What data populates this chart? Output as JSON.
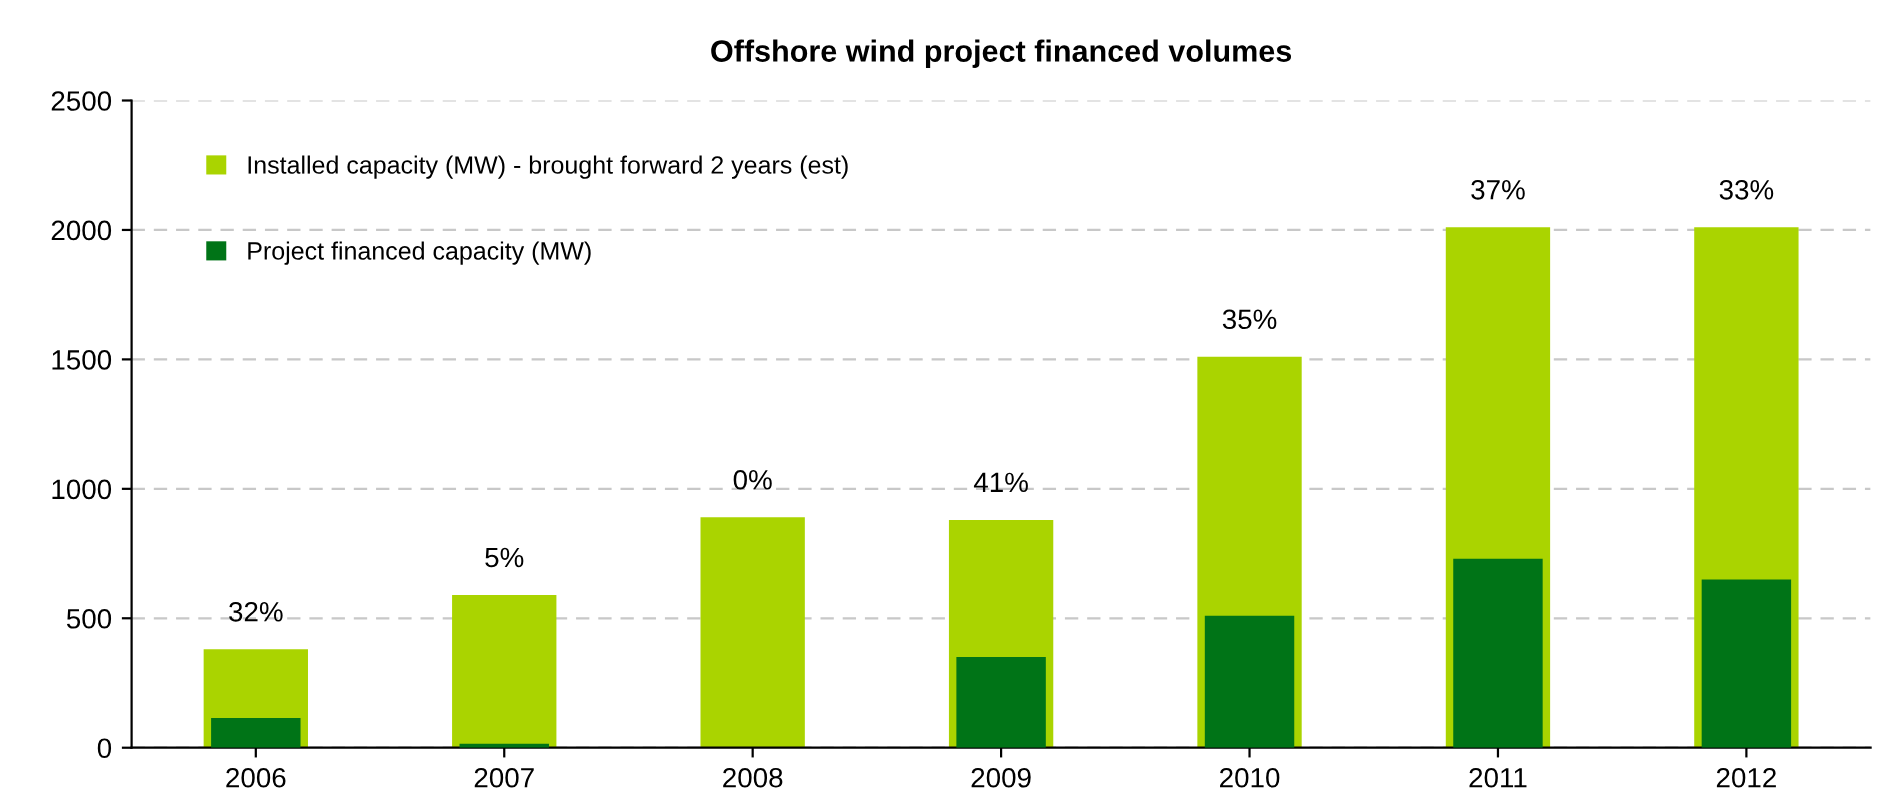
{
  "chart_data": {
    "type": "bar",
    "title": "Offshore wind project financed volumes",
    "categories": [
      "2006",
      "2007",
      "2008",
      "2009",
      "2010",
      "2011",
      "2012"
    ],
    "series": [
      {
        "name": "Installed capacity (MW) - brought forward 2 years (est)",
        "color": "#aad400",
        "values": [
          380,
          590,
          890,
          880,
          1510,
          2010,
          2010
        ]
      },
      {
        "name": "Project financed capacity (MW)",
        "color": "#007417",
        "values": [
          115,
          15,
          0,
          350,
          510,
          730,
          650
        ]
      }
    ],
    "annotations": [
      {
        "text": "32%",
        "x": "2006",
        "y": 380
      },
      {
        "text": "5%",
        "x": "2007",
        "y": 590
      },
      {
        "text": "0%",
        "x": "2008",
        "y": 890
      },
      {
        "text": "41%",
        "x": "2009",
        "y": 880
      },
      {
        "text": "35%",
        "x": "2010",
        "y": 1510
      },
      {
        "text": "37%",
        "x": "2011",
        "y": 2010
      },
      {
        "text": "33%",
        "x": "2012",
        "y": 2010
      }
    ],
    "ylim": [
      0,
      2500
    ],
    "yticks": [
      0,
      500,
      1000,
      1500,
      2000,
      2500
    ],
    "grid": "y",
    "legend": "top left"
  }
}
